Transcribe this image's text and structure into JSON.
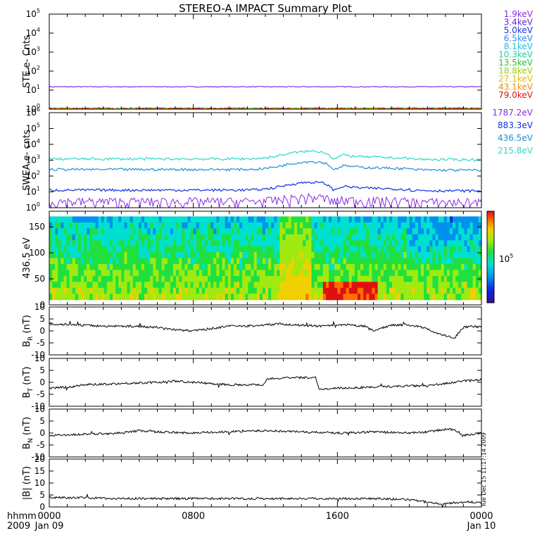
{
  "title": "STEREO-A IMPACT Summary Plot",
  "footer": {
    "hhmm_label": "hhmm",
    "year_label": "2009",
    "x_ticks": [
      "0000",
      "0800",
      "1600",
      "0000"
    ],
    "x_dates": [
      "Jan 09",
      "",
      "",
      "Jan 10"
    ],
    "x_minor_ticks_per_major": 8
  },
  "timestamp": "Tue Dec 15 11:17:14 2009",
  "colorbar": {
    "label": "10",
    "label_exp": "5",
    "colors": [
      "#3a0aa0",
      "#1024e0",
      "#0090f0",
      "#00e0d0",
      "#20e040",
      "#a0ea10",
      "#f0d000",
      "#ff7000",
      "#e01010"
    ]
  },
  "chart_data": [
    {
      "type": "line",
      "panel": "ste",
      "ylabel": "STE e- Cnts",
      "yscale": "log",
      "ylim": [
        1,
        100000
      ],
      "yticks": [
        {
          "base": "10",
          "exp": "0"
        },
        {
          "base": "10",
          "exp": "1"
        },
        {
          "base": "10",
          "exp": "2"
        },
        {
          "base": "10",
          "exp": "3"
        },
        {
          "base": "10",
          "exp": "4"
        },
        {
          "base": "10",
          "exp": "5"
        }
      ],
      "series": [
        {
          "name": "1.9keV",
          "color": "#8a2be2",
          "level": 15
        },
        {
          "name": "3.4keV",
          "color": "#5a2ad0",
          "level": 1
        },
        {
          "name": "5.0keV",
          "color": "#2030e0",
          "level": 1
        },
        {
          "name": "6.5keV",
          "color": "#1e90ff",
          "level": 1
        },
        {
          "name": "8.1keV",
          "color": "#20c0e0",
          "level": 1
        },
        {
          "name": "10.3keV",
          "color": "#20d0a0",
          "level": 1
        },
        {
          "name": "13.5keV",
          "color": "#30c030",
          "level": 1
        },
        {
          "name": "18.8keV",
          "color": "#a0d000",
          "level": 1
        },
        {
          "name": "27.1keV",
          "color": "#e0c000",
          "level": 1
        },
        {
          "name": "43.1keV",
          "color": "#f09000",
          "level": 1
        },
        {
          "name": "79.0keV",
          "color": "#e01010",
          "level": 1
        }
      ]
    },
    {
      "type": "line",
      "panel": "swea",
      "ylabel": "SWEA e- cnts",
      "yscale": "log",
      "ylim": [
        1,
        1000000
      ],
      "yticks": [
        {
          "base": "10",
          "exp": "0"
        },
        {
          "base": "10",
          "exp": "1"
        },
        {
          "base": "10",
          "exp": "2"
        },
        {
          "base": "10",
          "exp": "3"
        },
        {
          "base": "10",
          "exp": "4"
        },
        {
          "base": "10",
          "exp": "5"
        },
        {
          "base": "10",
          "exp": "6"
        }
      ],
      "series": [
        {
          "name": "1787.2eV",
          "color": "#8a2be2",
          "level": 2.5,
          "bump": 0.2
        },
        {
          "name": "883.3eV",
          "color": "#1030e0",
          "level": 13,
          "bump": 0.5
        },
        {
          "name": "436.5eV",
          "color": "#1e90d0",
          "level": 260,
          "bump": 0.5
        },
        {
          "name": "215.8eV",
          "color": "#30d8c0",
          "level": 1200,
          "bump": 0.5
        }
      ]
    },
    {
      "type": "heatmap",
      "panel": "pad",
      "ylabel": "436.5 eV",
      "ylim": [
        0,
        180
      ],
      "yticks": [
        "0",
        "50",
        "100",
        "150"
      ]
    },
    {
      "type": "line",
      "panel": "br",
      "ylabel": "B",
      "ylabel_sub": "R",
      "ylabel_unit": "(nT)",
      "ylim": [
        -10,
        10
      ],
      "yticks": [
        "-10",
        "-5",
        "0",
        "5",
        "10"
      ],
      "x": [
        0,
        1.5,
        3,
        4.5,
        6,
        7,
        8,
        9,
        10,
        11,
        12,
        12.8,
        13.5,
        15,
        16.5,
        17.5,
        18,
        19,
        20,
        21,
        21.5,
        22,
        22.5,
        23,
        23.5,
        24
      ],
      "y": [
        3,
        2.5,
        2,
        2,
        1.5,
        0.5,
        0,
        1,
        2,
        2,
        2.5,
        3,
        2.5,
        2,
        2.5,
        2,
        0,
        2.5,
        2.5,
        1,
        -1,
        -2,
        -3,
        1.5,
        2,
        1.5
      ]
    },
    {
      "type": "line",
      "panel": "bt",
      "ylabel": "B",
      "ylabel_sub": "T",
      "ylabel_unit": "(nT)",
      "ylim": [
        -10,
        10
      ],
      "yticks": [
        "-10",
        "-5",
        "0",
        "5",
        "10"
      ],
      "x": [
        0,
        1,
        2,
        4,
        6,
        7,
        8,
        10,
        11.9,
        12.1,
        14,
        14.8,
        15,
        16,
        18,
        20,
        21,
        22,
        23,
        24
      ],
      "y": [
        -2.5,
        -2,
        -1,
        -0.5,
        0,
        0.5,
        0,
        -1,
        -1,
        1.5,
        2,
        2,
        -3,
        -2.5,
        -2,
        -1.5,
        -1.5,
        -0.5,
        0.5,
        1
      ]
    },
    {
      "type": "line",
      "panel": "bn",
      "ylabel": "B",
      "ylabel_sub": "N",
      "ylabel_unit": "(nT)",
      "ylim": [
        -10,
        10
      ],
      "yticks": [
        "-10",
        "-5",
        "0",
        "5",
        "10"
      ],
      "x": [
        0,
        2,
        4,
        5,
        6,
        8,
        10,
        12,
        14,
        16,
        18,
        20,
        21,
        22,
        22.5,
        23,
        24
      ],
      "y": [
        -1,
        -0.5,
        0,
        1,
        0.5,
        0,
        0.5,
        1,
        0.5,
        0,
        0.5,
        0,
        0.5,
        1.5,
        1.5,
        -1,
        0
      ]
    },
    {
      "type": "line",
      "panel": "bmag",
      "ylabel": "|B| (nT)",
      "ylim": [
        0,
        20
      ],
      "yticks": [
        "0",
        "5",
        "10",
        "15",
        "20"
      ],
      "x": [
        0,
        2,
        4,
        6,
        8,
        10,
        12,
        14,
        16,
        18,
        20,
        21,
        21.5,
        22,
        23,
        24
      ],
      "y": [
        4,
        3.8,
        3.5,
        3.5,
        3.5,
        3.5,
        3.5,
        3.5,
        3.5,
        3.5,
        3,
        2,
        1.5,
        1.5,
        2,
        2
      ]
    }
  ]
}
